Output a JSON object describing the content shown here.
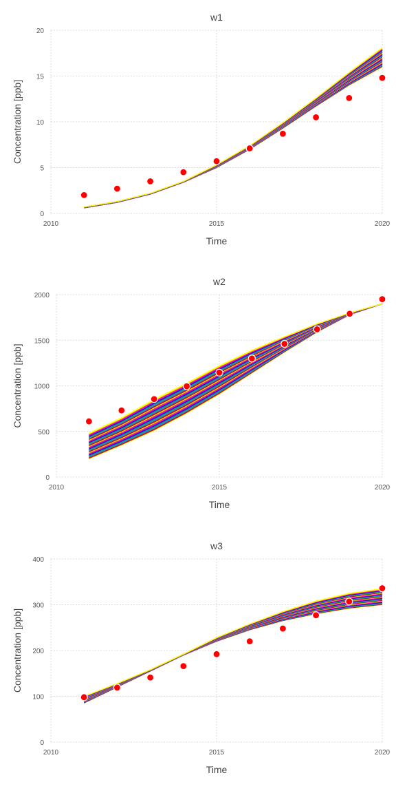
{
  "chart_data": [
    {
      "type": "line",
      "title": "w1",
      "xlabel": "Time",
      "ylabel": "Concentration [ppb]",
      "xlim": [
        2010,
        2020
      ],
      "ylim": [
        0,
        20
      ],
      "xticks": [
        2010,
        2015,
        2020
      ],
      "yticks": [
        0,
        5,
        10,
        15,
        20
      ],
      "grid": true,
      "x": [
        2011,
        2012,
        2013,
        2014,
        2015,
        2016,
        2017,
        2018,
        2019,
        2020
      ],
      "band": {
        "lower": [
          0.6,
          1.2,
          2.1,
          3.4,
          5.0,
          7.0,
          9.3,
          11.7,
          14.0,
          16.0
        ],
        "upper": [
          0.7,
          1.3,
          2.2,
          3.5,
          5.3,
          7.4,
          9.9,
          12.6,
          15.4,
          18.1
        ],
        "colors": [
          "#ffff00",
          "#8b2a2a",
          "#ff0000",
          "#1e90ff",
          "#00a0a0",
          "#2e8b57",
          "#0000cd",
          "#9400d3",
          "#ff00ff",
          "#d2691e"
        ]
      },
      "series": [
        {
          "name": "",
          "type": "scatter",
          "x": [
            2011,
            2012,
            2013,
            2014,
            2015,
            2016,
            2017,
            2018,
            2019,
            2020
          ],
          "values": [
            2.0,
            2.7,
            3.5,
            4.5,
            5.7,
            7.1,
            8.7,
            10.5,
            12.6,
            14.8
          ],
          "color": "#ff0000"
        }
      ]
    },
    {
      "type": "line",
      "title": "w2",
      "xlabel": "Time",
      "ylabel": "Concentration [ppb]",
      "xlim": [
        2010,
        2020
      ],
      "ylim": [
        0,
        2000
      ],
      "xticks": [
        2010,
        2015,
        2020
      ],
      "yticks": [
        0,
        500,
        1000,
        1500,
        2000
      ],
      "grid": true,
      "x": [
        2011,
        2012,
        2013,
        2014,
        2015,
        2016,
        2017,
        2018,
        2019,
        2020
      ],
      "band": {
        "lower": [
          200,
          350,
          510,
          700,
          910,
          1140,
          1370,
          1590,
          1780,
          1900
        ],
        "upper": [
          480,
          650,
          850,
          1030,
          1220,
          1390,
          1540,
          1680,
          1800,
          1900
        ],
        "colors": [
          "#ffff00",
          "#8b2a2a",
          "#ff0000",
          "#1e90ff",
          "#00a0a0",
          "#2e8b57",
          "#0000cd",
          "#9400d3",
          "#ff00ff",
          "#d2691e"
        ]
      },
      "series": [
        {
          "name": "",
          "type": "scatter",
          "x": [
            2011,
            2012,
            2013,
            2014,
            2015,
            2016,
            2017,
            2018,
            2019,
            2020
          ],
          "values": [
            610,
            730,
            855,
            995,
            1145,
            1300,
            1460,
            1620,
            1790,
            1950
          ],
          "color": "#ff0000"
        }
      ]
    },
    {
      "type": "line",
      "title": "w3",
      "xlabel": "Time",
      "ylabel": "Concentration [ppb]",
      "xlim": [
        2010,
        2020
      ],
      "ylim": [
        0,
        400
      ],
      "xticks": [
        2010,
        2015,
        2020
      ],
      "yticks": [
        0,
        100,
        200,
        300,
        400
      ],
      "grid": true,
      "x": [
        2011,
        2012,
        2013,
        2014,
        2015,
        2016,
        2017,
        2018,
        2019,
        2020
      ],
      "band": {
        "lower": [
          85,
          120,
          155,
          190,
          220,
          245,
          265,
          280,
          292,
          300
        ],
        "upper": [
          100,
          128,
          158,
          192,
          228,
          258,
          285,
          308,
          325,
          335
        ],
        "colors": [
          "#ffff00",
          "#8b2a2a",
          "#ff0000",
          "#1e90ff",
          "#00a0a0",
          "#2e8b57",
          "#0000cd",
          "#9400d3",
          "#ff00ff",
          "#d2691e"
        ]
      },
      "series": [
        {
          "name": "",
          "type": "scatter",
          "x": [
            2011,
            2012,
            2013,
            2014,
            2015,
            2016,
            2017,
            2018,
            2019,
            2020
          ],
          "values": [
            98,
            119,
            141,
            166,
            192,
            220,
            248,
            277,
            307,
            336
          ],
          "color": "#ff0000"
        }
      ]
    }
  ]
}
